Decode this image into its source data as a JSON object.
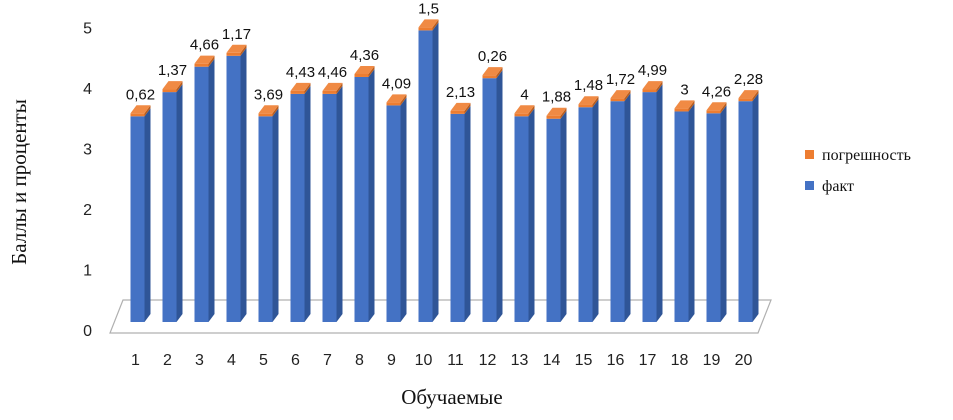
{
  "chart_data": {
    "type": "bar",
    "stacked": true,
    "categories": [
      "1",
      "2",
      "3",
      "4",
      "5",
      "6",
      "7",
      "8",
      "9",
      "10",
      "11",
      "12",
      "13",
      "14",
      "15",
      "16",
      "17",
      "18",
      "19",
      "20"
    ],
    "series": [
      {
        "name": "факт",
        "color": "#4472c4",
        "values": [
          3.4,
          3.8,
          4.22,
          4.4,
          3.4,
          3.77,
          3.77,
          4.05,
          3.58,
          4.82,
          3.44,
          4.03,
          3.4,
          3.36,
          3.55,
          3.65,
          3.8,
          3.48,
          3.45,
          3.65
        ]
      },
      {
        "name": "погрешность",
        "color": "#ed7d31",
        "values": [
          0.05,
          0.05,
          0.05,
          0.05,
          0.05,
          0.05,
          0.05,
          0.05,
          0.05,
          0.05,
          0.05,
          0.05,
          0.05,
          0.05,
          0.05,
          0.05,
          0.05,
          0.05,
          0.05,
          0.05
        ]
      }
    ],
    "data_labels": [
      "0,62",
      "1,37",
      "4,66",
      "1,17",
      "3,69",
      "4,43",
      "4,46",
      "4,36",
      "4,09",
      "1,5",
      "2,13",
      "0,26",
      "4",
      "1,88",
      "1,48",
      "1,72",
      "4,99",
      "3",
      "4,26",
      "2,28"
    ],
    "y_ticks": [
      "0",
      "1",
      "2",
      "3",
      "4",
      "5"
    ],
    "xlabel": "Обучаемые",
    "ylabel": "Баллы и проценты",
    "ylim": [
      0,
      5
    ],
    "legend_position": "right",
    "legend": [
      "погрешность",
      "факт"
    ],
    "grid": false
  }
}
